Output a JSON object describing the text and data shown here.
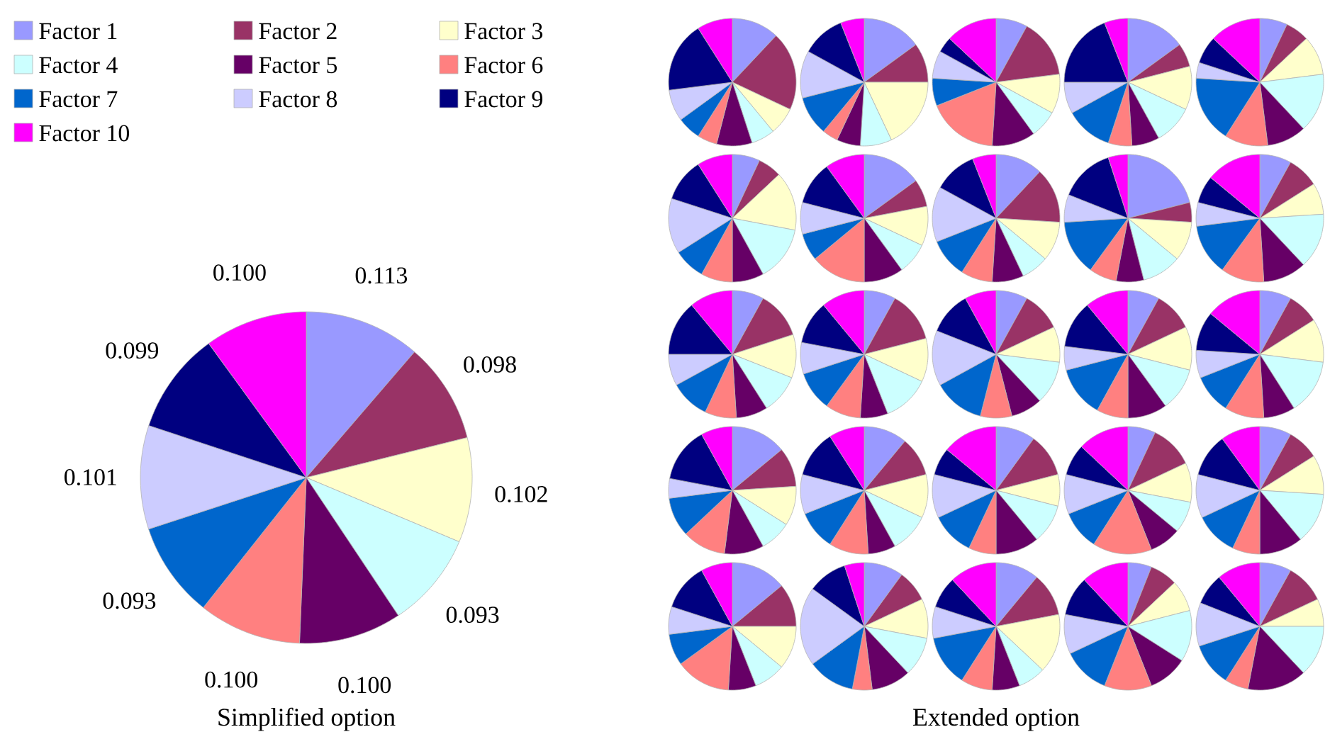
{
  "chart_data": [
    {
      "type": "pie",
      "title": "Simplified option",
      "legend": "top left",
      "categories": [
        "Factor 1",
        "Factor 2",
        "Factor 3",
        "Factor 4",
        "Factor 5",
        "Factor 6",
        "Factor 7",
        "Factor 8",
        "Factor 9",
        "Factor 10"
      ],
      "values": [
        0.113,
        0.098,
        0.102,
        0.093,
        0.1,
        0.1,
        0.093,
        0.101,
        0.099,
        0.1
      ],
      "value_labels": [
        "0.113",
        "0.098",
        "0.102",
        "0.093",
        "0.100",
        "0.100",
        "0.093",
        "0.101",
        "0.099",
        "0.100"
      ],
      "colors": [
        "#9999ff",
        "#993366",
        "#ffffcc",
        "#ccffff",
        "#660066",
        "#ff8080",
        "#0066cc",
        "#ccccff",
        "#000080",
        "#ff00ff"
      ]
    },
    {
      "type": "pie",
      "categories": [
        null,
        null,
        null,
        null,
        null,
        null,
        null,
        null,
        null,
        null
      ],
      "values": [
        12,
        20,
        7,
        6,
        9,
        5,
        6,
        8,
        18,
        9
      ],
      "colors": [
        "#9999ff",
        "#993366",
        "#ffffcc",
        "#ccffff",
        "#660066",
        "#ff8080",
        "#0066cc",
        "#ccccff",
        "#000080",
        "#ff00ff"
      ]
    },
    {
      "type": "pie",
      "categories": [
        null,
        null,
        null,
        null,
        null,
        null,
        null,
        null,
        null,
        null
      ],
      "values": [
        15,
        10,
        18,
        8,
        6,
        4,
        10,
        12,
        11,
        6
      ],
      "colors": [
        "#9999ff",
        "#993366",
        "#ffffcc",
        "#ccffff",
        "#660066",
        "#ff8080",
        "#0066cc",
        "#ccccff",
        "#000080",
        "#ff00ff"
      ]
    },
    {
      "type": "pie",
      "categories": [
        null,
        null,
        null,
        null,
        null,
        null,
        null,
        null,
        null,
        null
      ],
      "values": [
        8,
        15,
        10,
        7,
        11,
        18,
        7,
        7,
        4,
        13
      ],
      "colors": [
        "#9999ff",
        "#993366",
        "#ffffcc",
        "#ccffff",
        "#660066",
        "#ff8080",
        "#0066cc",
        "#ccccff",
        "#000080",
        "#ff00ff"
      ]
    },
    {
      "type": "pie",
      "categories": [
        null,
        null,
        null,
        null,
        null,
        null,
        null,
        null,
        null,
        null
      ],
      "values": [
        15,
        6,
        11,
        10,
        7,
        6,
        12,
        8,
        19,
        6
      ],
      "colors": [
        "#9999ff",
        "#993366",
        "#ffffcc",
        "#ccffff",
        "#660066",
        "#ff8080",
        "#0066cc",
        "#ccccff",
        "#000080",
        "#ff00ff"
      ]
    },
    {
      "type": "pie",
      "categories": [
        null,
        null,
        null,
        null,
        null,
        null,
        null,
        null,
        null,
        null
      ],
      "values": [
        7,
        6,
        10,
        15,
        10,
        11,
        17,
        4,
        7,
        13
      ],
      "colors": [
        "#9999ff",
        "#993366",
        "#ffffcc",
        "#ccffff",
        "#660066",
        "#ff8080",
        "#0066cc",
        "#ccccff",
        "#000080",
        "#ff00ff"
      ]
    },
    {
      "type": "pie",
      "categories": [
        null,
        null,
        null,
        null,
        null,
        null,
        null,
        null,
        null,
        null
      ],
      "values": [
        7,
        6,
        15,
        14,
        8,
        8,
        8,
        14,
        11,
        9
      ],
      "colors": [
        "#9999ff",
        "#993366",
        "#ffffcc",
        "#ccffff",
        "#660066",
        "#ff8080",
        "#0066cc",
        "#ccccff",
        "#000080",
        "#ff00ff"
      ]
    },
    {
      "type": "pie",
      "categories": [
        null,
        null,
        null,
        null,
        null,
        null,
        null,
        null,
        null,
        null
      ],
      "values": [
        15,
        7,
        10,
        8,
        10,
        14,
        7,
        8,
        11,
        10
      ],
      "colors": [
        "#9999ff",
        "#993366",
        "#ffffcc",
        "#ccffff",
        "#660066",
        "#ff8080",
        "#0066cc",
        "#ccccff",
        "#000080",
        "#ff00ff"
      ]
    },
    {
      "type": "pie",
      "categories": [
        null,
        null,
        null,
        null,
        null,
        null,
        null,
        null,
        null,
        null
      ],
      "values": [
        12,
        14,
        10,
        7,
        8,
        8,
        10,
        14,
        11,
        6
      ],
      "colors": [
        "#9999ff",
        "#993366",
        "#ffffcc",
        "#ccffff",
        "#660066",
        "#ff8080",
        "#0066cc",
        "#ccccff",
        "#000080",
        "#ff00ff"
      ]
    },
    {
      "type": "pie",
      "categories": [
        null,
        null,
        null,
        null,
        null,
        null,
        null,
        null,
        null,
        null
      ],
      "values": [
        21,
        5,
        10,
        10,
        7,
        7,
        14,
        7,
        14,
        5
      ],
      "colors": [
        "#9999ff",
        "#993366",
        "#ffffcc",
        "#ccffff",
        "#660066",
        "#ff8080",
        "#0066cc",
        "#ccccff",
        "#000080",
        "#ff00ff"
      ]
    },
    {
      "type": "pie",
      "categories": [
        null,
        null,
        null,
        null,
        null,
        null,
        null,
        null,
        null,
        null
      ],
      "values": [
        8,
        8,
        8,
        14,
        11,
        11,
        13,
        6,
        7,
        14
      ],
      "colors": [
        "#9999ff",
        "#993366",
        "#ffffcc",
        "#ccffff",
        "#660066",
        "#ff8080",
        "#0066cc",
        "#ccccff",
        "#000080",
        "#ff00ff"
      ]
    },
    {
      "type": "pie",
      "categories": [
        null,
        null,
        null,
        null,
        null,
        null,
        null,
        null,
        null,
        null
      ],
      "values": [
        8,
        12,
        11,
        10,
        8,
        8,
        10,
        8,
        14,
        11
      ],
      "colors": [
        "#9999ff",
        "#993366",
        "#ffffcc",
        "#ccffff",
        "#660066",
        "#ff8080",
        "#0066cc",
        "#ccccff",
        "#000080",
        "#ff00ff"
      ]
    },
    {
      "type": "pie",
      "categories": [
        null,
        null,
        null,
        null,
        null,
        null,
        null,
        null,
        null,
        null
      ],
      "values": [
        8,
        13,
        11,
        12,
        7,
        9,
        10,
        8,
        11,
        11
      ],
      "colors": [
        "#9999ff",
        "#993366",
        "#ffffcc",
        "#ccffff",
        "#660066",
        "#ff8080",
        "#0066cc",
        "#ccccff",
        "#000080",
        "#ff00ff"
      ]
    },
    {
      "type": "pie",
      "categories": [
        null,
        null,
        null,
        null,
        null,
        null,
        null,
        null,
        null,
        null
      ],
      "values": [
        8,
        10,
        9,
        11,
        8,
        8,
        13,
        14,
        11,
        8
      ],
      "colors": [
        "#9999ff",
        "#993366",
        "#ffffcc",
        "#ccffff",
        "#660066",
        "#ff8080",
        "#0066cc",
        "#ccccff",
        "#000080",
        "#ff00ff"
      ]
    },
    {
      "type": "pie",
      "categories": [
        null,
        null,
        null,
        null,
        null,
        null,
        null,
        null,
        null,
        null
      ],
      "values": [
        8,
        10,
        11,
        11,
        10,
        8,
        13,
        6,
        12,
        11
      ],
      "colors": [
        "#9999ff",
        "#993366",
        "#ffffcc",
        "#ccffff",
        "#660066",
        "#ff8080",
        "#0066cc",
        "#ccccff",
        "#000080",
        "#ff00ff"
      ]
    },
    {
      "type": "pie",
      "categories": [
        null,
        null,
        null,
        null,
        null,
        null,
        null,
        null,
        null,
        null
      ],
      "values": [
        8,
        8,
        11,
        14,
        8,
        10,
        10,
        7,
        10,
        14
      ],
      "colors": [
        "#9999ff",
        "#993366",
        "#ffffcc",
        "#ccffff",
        "#660066",
        "#ff8080",
        "#0066cc",
        "#ccccff",
        "#000080",
        "#ff00ff"
      ]
    },
    {
      "type": "pie",
      "categories": [
        null,
        null,
        null,
        null,
        null,
        null,
        null,
        null,
        null,
        null
      ],
      "values": [
        14,
        10,
        10,
        8,
        10,
        11,
        10,
        5,
        14,
        8
      ],
      "colors": [
        "#9999ff",
        "#993366",
        "#ffffcc",
        "#ccffff",
        "#660066",
        "#ff8080",
        "#0066cc",
        "#ccccff",
        "#000080",
        "#ff00ff"
      ]
    },
    {
      "type": "pie",
      "categories": [
        null,
        null,
        null,
        null,
        null,
        null,
        null,
        null,
        null,
        null
      ],
      "values": [
        11,
        10,
        11,
        10,
        7,
        10,
        10,
        10,
        12,
        9
      ],
      "colors": [
        "#9999ff",
        "#993366",
        "#ffffcc",
        "#ccffff",
        "#660066",
        "#ff8080",
        "#0066cc",
        "#ccccff",
        "#000080",
        "#ff00ff"
      ]
    },
    {
      "type": "pie",
      "categories": [
        null,
        null,
        null,
        null,
        null,
        null,
        null,
        null,
        null,
        null
      ],
      "values": [
        10,
        11,
        8,
        10,
        11,
        7,
        11,
        11,
        7,
        14
      ],
      "colors": [
        "#9999ff",
        "#993366",
        "#ffffcc",
        "#ccffff",
        "#660066",
        "#ff8080",
        "#0066cc",
        "#ccccff",
        "#000080",
        "#ff00ff"
      ]
    },
    {
      "type": "pie",
      "categories": [
        null,
        null,
        null,
        null,
        null,
        null,
        null,
        null,
        null,
        null
      ],
      "values": [
        7,
        11,
        10,
        8,
        8,
        15,
        10,
        10,
        8,
        13
      ],
      "colors": [
        "#9999ff",
        "#993366",
        "#ffffcc",
        "#ccffff",
        "#660066",
        "#ff8080",
        "#0066cc",
        "#ccccff",
        "#000080",
        "#ff00ff"
      ]
    },
    {
      "type": "pie",
      "categories": [
        null,
        null,
        null,
        null,
        null,
        null,
        null,
        null,
        null,
        null
      ],
      "values": [
        8,
        8,
        10,
        13,
        11,
        7,
        11,
        11,
        11,
        10
      ],
      "colors": [
        "#9999ff",
        "#993366",
        "#ffffcc",
        "#ccffff",
        "#660066",
        "#ff8080",
        "#0066cc",
        "#ccccff",
        "#000080",
        "#ff00ff"
      ]
    },
    {
      "type": "pie",
      "categories": [
        null,
        null,
        null,
        null,
        null,
        null,
        null,
        null,
        null,
        null
      ],
      "values": [
        14,
        11,
        11,
        8,
        7,
        14,
        8,
        7,
        12,
        8
      ],
      "colors": [
        "#9999ff",
        "#993366",
        "#ffffcc",
        "#ccffff",
        "#660066",
        "#ff8080",
        "#0066cc",
        "#ccccff",
        "#000080",
        "#ff00ff"
      ]
    },
    {
      "type": "pie",
      "categories": [
        null,
        null,
        null,
        null,
        null,
        null,
        null,
        null,
        null,
        null
      ],
      "values": [
        10,
        8,
        10,
        10,
        10,
        5,
        12,
        20,
        10,
        5
      ],
      "colors": [
        "#9999ff",
        "#993366",
        "#ffffcc",
        "#ccffff",
        "#660066",
        "#ff8080",
        "#0066cc",
        "#ccccff",
        "#000080",
        "#ff00ff"
      ]
    },
    {
      "type": "pie",
      "title": "Extended option",
      "categories": [
        null,
        null,
        null,
        null,
        null,
        null,
        null,
        null,
        null,
        null
      ],
      "values": [
        11,
        11,
        15,
        7,
        7,
        8,
        13,
        8,
        8,
        12
      ],
      "colors": [
        "#9999ff",
        "#993366",
        "#ffffcc",
        "#ccffff",
        "#660066",
        "#ff8080",
        "#0066cc",
        "#ccccff",
        "#000080",
        "#ff00ff"
      ]
    },
    {
      "type": "pie",
      "categories": [
        null,
        null,
        null,
        null,
        null,
        null,
        null,
        null,
        null,
        null
      ],
      "values": [
        6,
        7,
        8,
        13,
        10,
        12,
        12,
        10,
        10,
        12
      ],
      "colors": [
        "#9999ff",
        "#993366",
        "#ffffcc",
        "#ccffff",
        "#660066",
        "#ff8080",
        "#0066cc",
        "#ccccff",
        "#000080",
        "#ff00ff"
      ]
    },
    {
      "type": "pie",
      "categories": [
        null,
        null,
        null,
        null,
        null,
        null,
        null,
        null,
        null,
        null
      ],
      "values": [
        8,
        10,
        7,
        13,
        15,
        6,
        11,
        11,
        8,
        11
      ],
      "colors": [
        "#9999ff",
        "#993366",
        "#ffffcc",
        "#ccffff",
        "#660066",
        "#ff8080",
        "#0066cc",
        "#ccccff",
        "#000080",
        "#ff00ff"
      ]
    }
  ]
}
